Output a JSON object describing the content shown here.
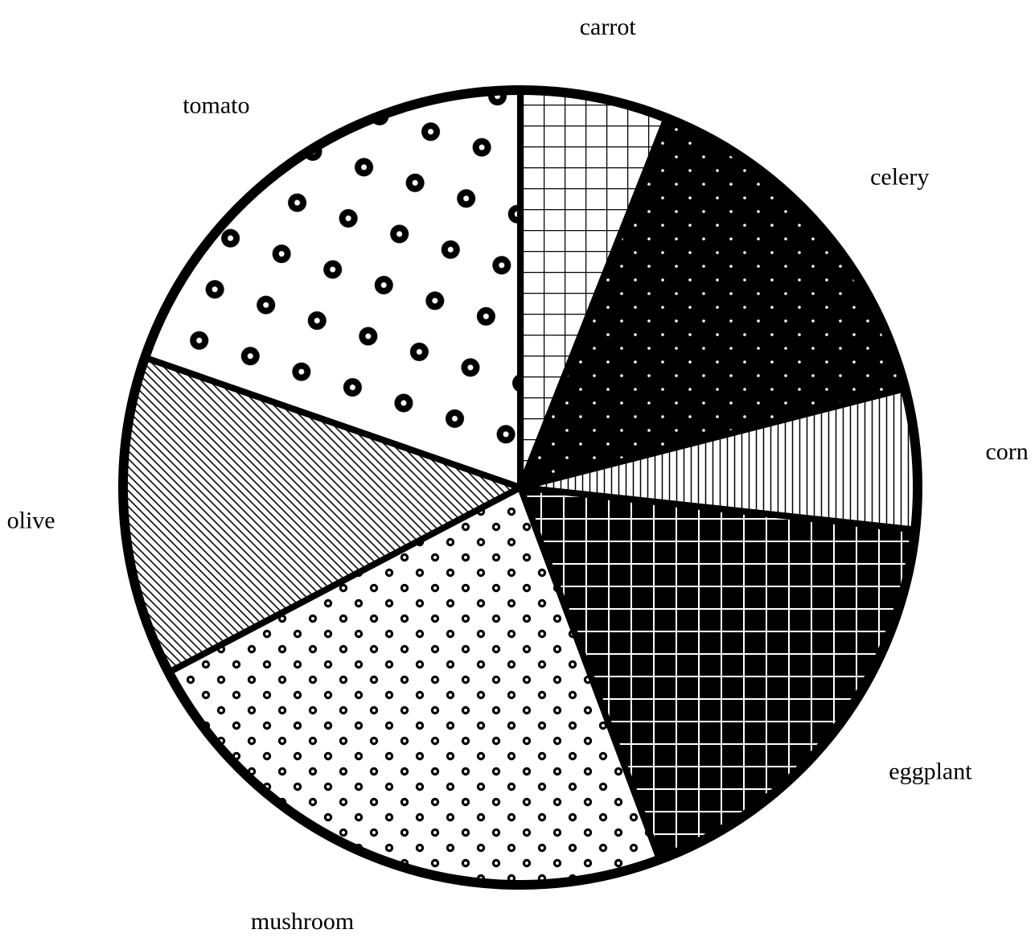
{
  "chart_data": {
    "type": "pie",
    "title": "",
    "start_angle_deg": 0,
    "direction": "clockwise",
    "slices": [
      {
        "label": "carrot",
        "value": 6.0,
        "pattern": "grid-white",
        "color": "#ffffff"
      },
      {
        "label": "celery",
        "value": 15.0,
        "pattern": "dots-on-black",
        "color": "#000000"
      },
      {
        "label": "corn",
        "value": 5.7,
        "pattern": "vertical-lines",
        "color": "#ffffff"
      },
      {
        "label": "eggplant",
        "value": 17.6,
        "pattern": "grid-on-black",
        "color": "#000000"
      },
      {
        "label": "mushroom",
        "value": 23.0,
        "pattern": "small-rings",
        "color": "#ffffff"
      },
      {
        "label": "olive",
        "value": 13.0,
        "pattern": "diagonal-lines",
        "color": "#ffffff"
      },
      {
        "label": "tomato",
        "value": 19.7,
        "pattern": "large-rings",
        "color": "#ffffff"
      }
    ]
  }
}
